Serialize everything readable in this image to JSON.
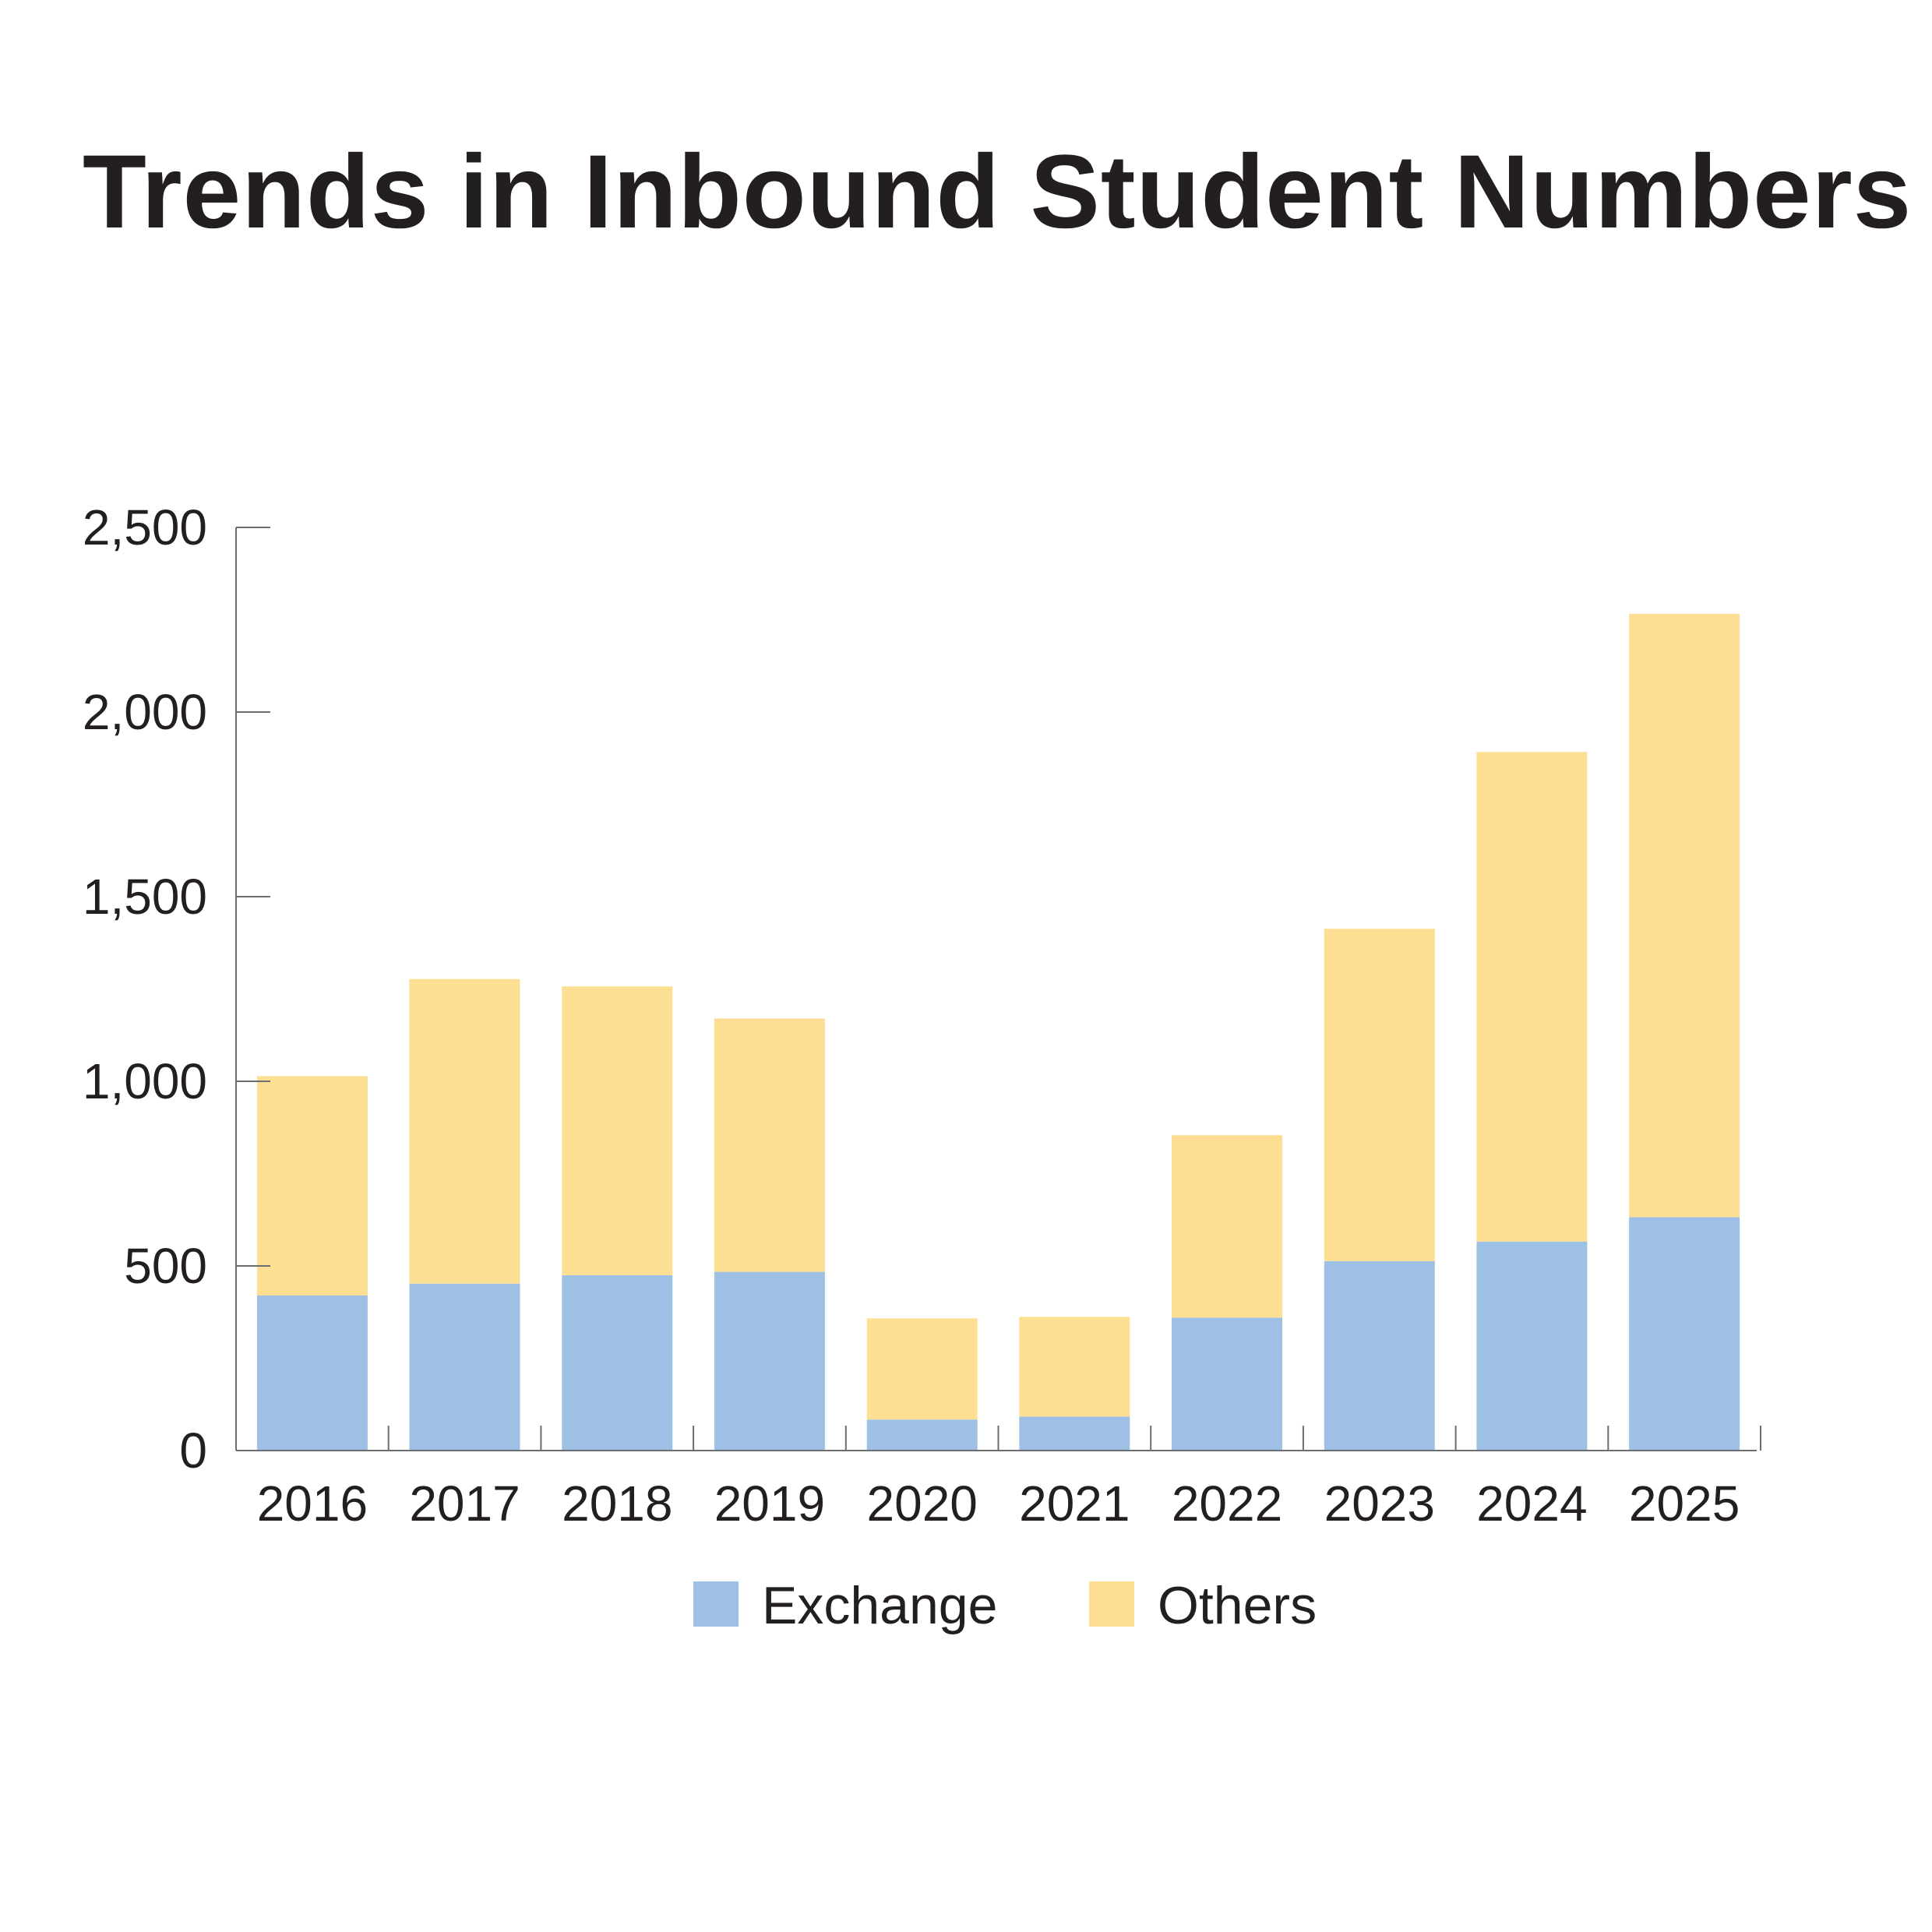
{
  "chart_data": {
    "type": "bar",
    "stacked": true,
    "title": "Trends in Inbound Student Numbers",
    "xlabel": "",
    "ylabel": "",
    "categories": [
      "2016",
      "2017",
      "2018",
      "2019",
      "2020",
      "2021",
      "2022",
      "2023",
      "2024",
      "2025"
    ],
    "series": [
      {
        "name": "Exchange",
        "color": "#9fc0e5",
        "values": [
          420,
          452,
          475,
          484,
          84,
          92,
          360,
          513,
          566,
          632
        ]
      },
      {
        "name": "Others",
        "color": "#fddf93",
        "values": [
          594,
          825,
          782,
          686,
          274,
          270,
          494,
          900,
          1326,
          1634
        ]
      }
    ],
    "ylim": [
      0,
      2500
    ],
    "yticks": [
      0,
      500,
      1000,
      1500,
      2000,
      2500
    ],
    "ytick_labels": [
      "0",
      "500",
      "1,000",
      "1,500",
      "2,000",
      "2,500"
    ],
    "grid": false,
    "legend_position": "bottom-center",
    "axis_color": "#6d6e71"
  }
}
